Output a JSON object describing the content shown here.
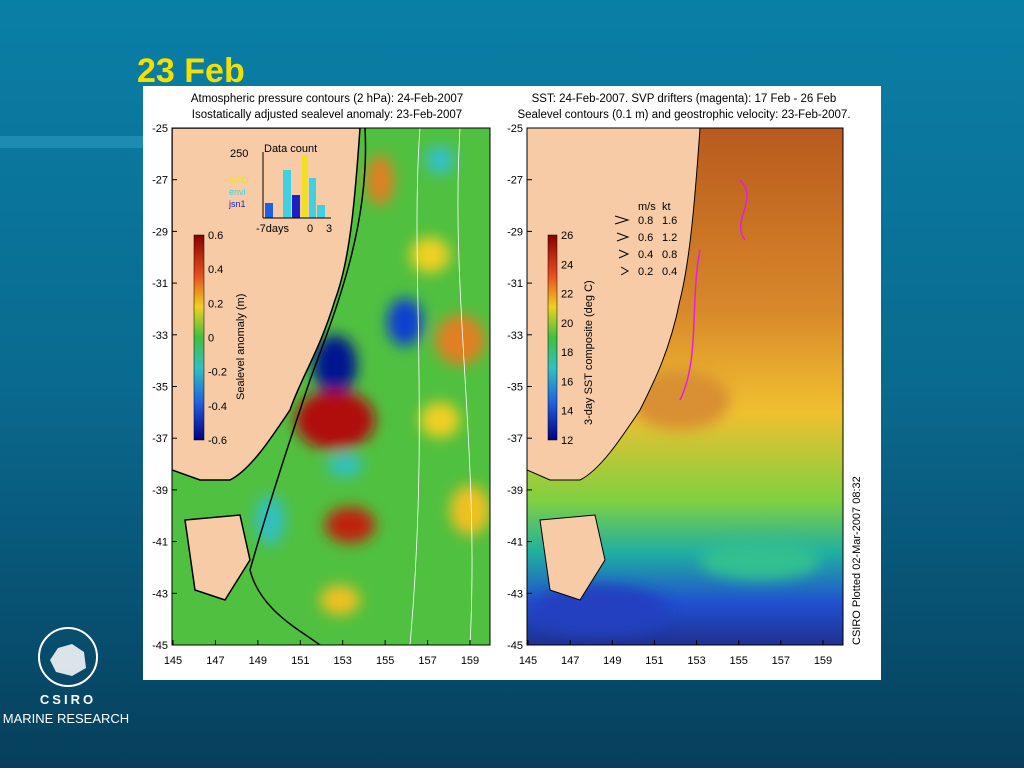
{
  "slide": {
    "title": "23 Feb"
  },
  "left_panel": {
    "title_lines": [
      "Atmospheric pressure contours (2 hPa): 24-Feb-2007",
      "Isostatically adjusted sealevel anomaly: 23-Feb-2007"
    ],
    "y_ticks": [
      "-25",
      "-27",
      "-29",
      "-31",
      "-33",
      "-35",
      "-37",
      "-39",
      "-41",
      "-43",
      "-45"
    ],
    "x_ticks": [
      "145",
      "147",
      "149",
      "151",
      "153",
      "155",
      "157",
      "159"
    ],
    "colorbar": {
      "label": "Sealevel anomaly (m)",
      "ticks": [
        "0.6",
        "0.4",
        "0.2",
        "0",
        "-0.2",
        "-0.4",
        "-0.6"
      ]
    },
    "inset": {
      "title": "Data count",
      "y_tick": "250",
      "legend": [
        "GFO",
        "envi",
        "jsn1"
      ],
      "x_ticks": [
        "-7days",
        "0",
        "3"
      ]
    }
  },
  "right_panel": {
    "title_lines": [
      "SST: 24-Feb-2007. SVP drifters (magenta): 17 Feb - 26 Feb",
      "Sealevel contours (0.1 m) and geostrophic velocity: 23-Feb-2007."
    ],
    "y_ticks": [
      "-25",
      "-27",
      "-29",
      "-31",
      "-33",
      "-35",
      "-37",
      "-39",
      "-41",
      "-43",
      "-45"
    ],
    "x_ticks": [
      "145",
      "147",
      "149",
      "151",
      "153",
      "155",
      "157",
      "159"
    ],
    "colorbar": {
      "label": "3-day SST composite (deg C)",
      "ticks": [
        "26",
        "24",
        "22",
        "20",
        "18",
        "16",
        "14",
        "12"
      ]
    },
    "velocity_legend": {
      "headers": [
        "m/s",
        "kt"
      ],
      "rows": [
        [
          "0.8",
          "1.6"
        ],
        [
          "0.6",
          "1.2"
        ],
        [
          "0.4",
          "0.8"
        ],
        [
          "0.2",
          "0.4"
        ]
      ]
    },
    "footer": "CSIRO Plotted 02-Mar-2007 08:32"
  },
  "logo": {
    "name": "CSIRO",
    "subtitle": "MARINE RESEARCH"
  }
}
